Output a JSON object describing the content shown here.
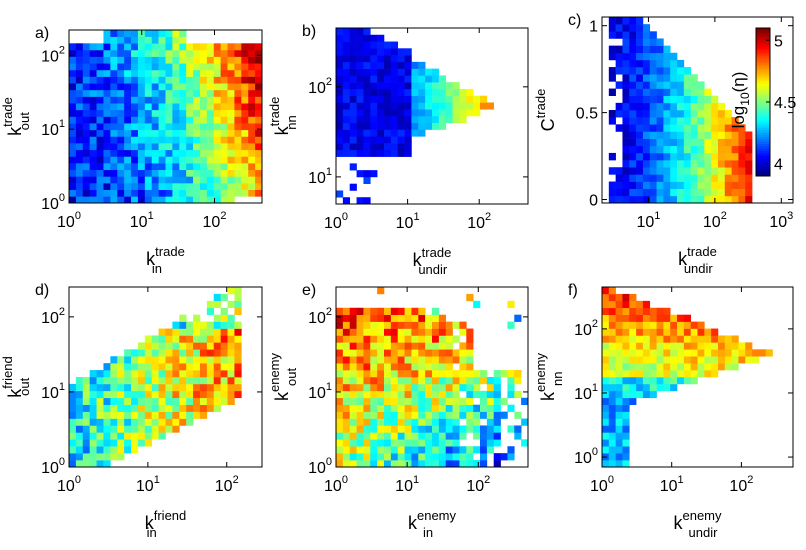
{
  "figure": {
    "description_colormap": "jet"
  },
  "colorbar": {
    "label_base": "log",
    "label_sub": "10",
    "label_arg": "(η)",
    "ticks": [
      4,
      4.5,
      5
    ],
    "tick_labels": [
      "4",
      "4.5",
      "5"
    ],
    "range": [
      3.9,
      5.1
    ]
  },
  "chart_data": [
    {
      "id": "a",
      "panel_label": "a)",
      "type": "heatmap",
      "title": "",
      "xscale": "log",
      "yscale": "log",
      "xlim": [
        1,
        450
      ],
      "ylim": [
        1,
        220
      ],
      "x_ticks": [
        {
          "base": "10",
          "exp": "0"
        },
        {
          "base": "10",
          "exp": "1"
        },
        {
          "base": "10",
          "exp": "2"
        }
      ],
      "y_ticks": [
        {
          "base": "10",
          "exp": "0"
        },
        {
          "base": "10",
          "exp": "1"
        },
        {
          "base": "10",
          "exp": "2"
        }
      ],
      "xlabel": {
        "main": "k",
        "sup": "trade",
        "sub": "in"
      },
      "ylabel": {
        "main": "k",
        "sup": "trade",
        "sub": "out"
      },
      "z_description": "log10(eta), high values concentrated at large k_in and large k_out",
      "shape": "full",
      "z_trend": "x_and_y",
      "z_min": 4.0,
      "z_max": 5.1
    },
    {
      "id": "b",
      "panel_label": "b)",
      "type": "heatmap",
      "xscale": "log",
      "yscale": "log",
      "xlim": [
        1,
        480
      ],
      "ylim": [
        5,
        450
      ],
      "x_ticks": [
        {
          "base": "10",
          "exp": "0"
        },
        {
          "base": "10",
          "exp": "1"
        },
        {
          "base": "10",
          "exp": "2"
        }
      ],
      "y_ticks": [
        {
          "base": "10",
          "exp": "1"
        },
        {
          "base": "10",
          "exp": "2"
        }
      ],
      "xlabel": {
        "main": "k",
        "sup": "trade",
        "sub": "undir"
      },
      "ylabel": {
        "main": "k",
        "sup": "trade",
        "sub": "nn"
      },
      "shape": "wedge_right",
      "z_trend": "x",
      "z_min": 3.9,
      "z_max": 5.1
    },
    {
      "id": "c",
      "panel_label": "c)",
      "type": "heatmap",
      "xscale": "log",
      "yscale": "linear",
      "xlim": [
        2,
        1500
      ],
      "ylim": [
        -0.02,
        1.05
      ],
      "x_ticks": [
        {
          "base": "10",
          "exp": "1"
        },
        {
          "base": "10",
          "exp": "2"
        },
        {
          "base": "10",
          "exp": "3"
        }
      ],
      "y_ticks": [
        {
          "base": "0",
          "exp": ""
        },
        {
          "base": "0.5",
          "exp": ""
        },
        {
          "base": "1",
          "exp": ""
        }
      ],
      "xlabel": {
        "main": "k",
        "sup": "trade",
        "sub": "undir"
      },
      "ylabel": {
        "main": "C",
        "sup": "trade",
        "sub": ""
      },
      "shape": "triangle_down",
      "z_trend": "x",
      "z_min": 3.9,
      "z_max": 5.1
    },
    {
      "id": "d",
      "panel_label": "d)",
      "type": "heatmap",
      "xscale": "log",
      "yscale": "log",
      "xlim": [
        1,
        280
      ],
      "ylim": [
        1,
        250
      ],
      "x_ticks": [
        {
          "base": "10",
          "exp": "0"
        },
        {
          "base": "10",
          "exp": "1"
        },
        {
          "base": "10",
          "exp": "2"
        }
      ],
      "y_ticks": [
        {
          "base": "10",
          "exp": "0"
        },
        {
          "base": "10",
          "exp": "1"
        },
        {
          "base": "10",
          "exp": "2"
        }
      ],
      "xlabel": {
        "main": "k",
        "sup": "friend",
        "sub": "in"
      },
      "ylabel": {
        "main": "k",
        "sup": "friend",
        "sub": "out"
      },
      "shape": "diagonal",
      "z_trend": "mixed",
      "z_min": 4.0,
      "z_max": 5.1
    },
    {
      "id": "e",
      "panel_label": "e)",
      "type": "heatmap",
      "xscale": "log",
      "yscale": "log",
      "xlim": [
        1,
        500
      ],
      "ylim": [
        1,
        250
      ],
      "x_ticks": [
        {
          "base": "10",
          "exp": "0"
        },
        {
          "base": "10",
          "exp": "1"
        },
        {
          "base": "10",
          "exp": "2"
        }
      ],
      "y_ticks": [
        {
          "base": "10",
          "exp": "0"
        },
        {
          "base": "10",
          "exp": "1"
        },
        {
          "base": "10",
          "exp": "2"
        }
      ],
      "xlabel": {
        "main": "k",
        "sup": "enemy",
        "sub": "in"
      },
      "ylabel": {
        "main": "k",
        "sup": "enemy",
        "sub": "out"
      },
      "shape": "top_left",
      "z_trend": "mixed",
      "z_min": 4.0,
      "z_max": 5.0
    },
    {
      "id": "f",
      "panel_label": "f)",
      "type": "heatmap",
      "xscale": "log",
      "yscale": "log",
      "xlim": [
        1,
        550
      ],
      "ylim": [
        0.7,
        450
      ],
      "x_ticks": [
        {
          "base": "10",
          "exp": "0"
        },
        {
          "base": "10",
          "exp": "1"
        },
        {
          "base": "10",
          "exp": "2"
        }
      ],
      "y_ticks": [
        {
          "base": "10",
          "exp": "0"
        },
        {
          "base": "10",
          "exp": "1"
        },
        {
          "base": "10",
          "exp": "2"
        }
      ],
      "xlabel": {
        "main": "k",
        "sup": "enemy",
        "sub": "undir"
      },
      "ylabel": {
        "main": "k",
        "sup": "enemy",
        "sub": "nn"
      },
      "shape": "wedge_right_f",
      "z_trend": "y",
      "z_min": 3.9,
      "z_max": 4.9
    }
  ]
}
